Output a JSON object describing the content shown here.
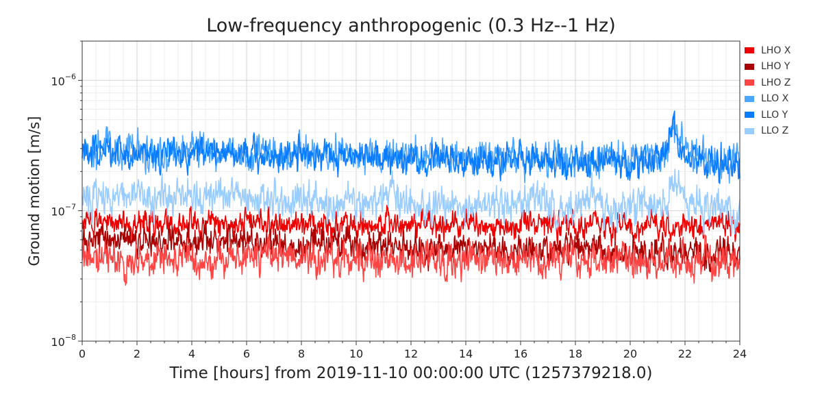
{
  "chart_data": {
    "type": "line",
    "title": "Low-frequency anthropogenic (0.3 Hz--1 Hz)",
    "xlabel": "Time [hours] from 2019-11-10 00:00:00 UTC (1257379218.0)",
    "ylabel": "Ground motion [m/s]",
    "xlim": [
      0,
      24
    ],
    "ylim": [
      1e-08,
      2e-06
    ],
    "yscale": "log",
    "grid": true,
    "legend_position": "outside-right-top",
    "xticks": [
      "0",
      "2",
      "4",
      "6",
      "8",
      "10",
      "12",
      "14",
      "16",
      "18",
      "20",
      "22",
      "24"
    ],
    "yticks": [
      {
        "value": 1e-08,
        "mantissa": "10",
        "exponent": "−8"
      },
      {
        "value": 1e-07,
        "mantissa": "10",
        "exponent": "−7"
      },
      {
        "value": 1e-06,
        "mantissa": "10",
        "exponent": "−6"
      }
    ],
    "series": [
      {
        "name": "LHO X",
        "color": "#ee0000",
        "x": [
          0,
          1,
          2,
          3,
          4,
          5,
          6,
          7,
          8,
          9,
          10,
          11,
          12,
          13,
          14,
          15,
          16,
          17,
          18,
          19,
          20,
          21,
          22,
          23,
          24
        ],
        "y": [
          7.4e-08,
          8.2e-08,
          8e-08,
          7.8e-08,
          8e-08,
          8.2e-08,
          8e-08,
          7.9e-08,
          7.8e-08,
          8e-08,
          7.6e-08,
          7.8e-08,
          7.8e-08,
          7.8e-08,
          7.8e-08,
          7.6e-08,
          7.8e-08,
          7.6e-08,
          7.8e-08,
          7.6e-08,
          7.6e-08,
          7.8e-08,
          7.8e-08,
          7.4e-08,
          7.6e-08
        ]
      },
      {
        "name": "LHO Y",
        "color": "#aa0000",
        "x": [
          0,
          1,
          2,
          3,
          4,
          5,
          6,
          7,
          8,
          9,
          10,
          11,
          12,
          13,
          14,
          15,
          16,
          17,
          18,
          19,
          20,
          21,
          22,
          23,
          24
        ],
        "y": [
          5.8e-08,
          6e-08,
          6e-08,
          5.8e-08,
          6e-08,
          6e-08,
          5.8e-08,
          5.7e-08,
          5.7e-08,
          5.6e-08,
          5.5e-08,
          5.4e-08,
          5.3e-08,
          5.2e-08,
          5.2e-08,
          5.1e-08,
          5.1e-08,
          5e-08,
          5e-08,
          4.9e-08,
          4.8e-08,
          4.8e-08,
          4.8e-08,
          4.7e-08,
          4.7e-08
        ]
      },
      {
        "name": "LHO Z",
        "color": "#ff4444",
        "x": [
          0,
          1,
          2,
          3,
          4,
          5,
          6,
          7,
          8,
          9,
          10,
          11,
          12,
          13,
          14,
          15,
          16,
          17,
          18,
          19,
          20,
          21,
          22,
          23,
          24
        ],
        "y": [
          4.3e-08,
          4.2e-08,
          4.1e-08,
          4.2e-08,
          4.2e-08,
          4.3e-08,
          4.3e-08,
          4.4e-08,
          4.3e-08,
          4.3e-08,
          4.4e-08,
          4.2e-08,
          4.3e-08,
          4.2e-08,
          4.3e-08,
          4.2e-08,
          4.1e-08,
          4.2e-08,
          4.1e-08,
          4.2e-08,
          4.1e-08,
          4e-08,
          4.1e-08,
          4e-08,
          4e-08
        ]
      },
      {
        "name": "LLO X",
        "color": "#4ba6ff",
        "x": [
          0,
          1,
          2,
          3,
          4,
          5,
          6,
          7,
          8,
          9,
          10,
          11,
          12,
          13,
          14,
          15,
          16,
          17,
          18,
          19,
          20,
          21,
          21.3,
          21.6,
          22,
          23,
          24
        ],
        "y": [
          2.8e-07,
          2.9e-07,
          2.9e-07,
          2.8e-07,
          2.9e-07,
          2.8e-07,
          2.8e-07,
          2.7e-07,
          2.8e-07,
          2.7e-07,
          2.7e-07,
          2.7e-07,
          2.6e-07,
          2.6e-07,
          2.6e-07,
          2.6e-07,
          2.6e-07,
          2.5e-07,
          2.5e-07,
          2.5e-07,
          2.4e-07,
          2.5e-07,
          2.9e-07,
          4.2e-07,
          2.8e-07,
          2.4e-07,
          2.4e-07
        ]
      },
      {
        "name": "LLO Y",
        "color": "#0a7cff",
        "x": [
          0,
          1,
          2,
          3,
          4,
          5,
          6,
          7,
          8,
          9,
          10,
          11,
          12,
          13,
          14,
          15,
          16,
          17,
          18,
          19,
          20,
          21,
          21.3,
          21.6,
          22,
          23,
          24
        ],
        "y": [
          2.7e-07,
          2.8e-07,
          2.8e-07,
          2.7e-07,
          2.8e-07,
          2.7e-07,
          2.7e-07,
          2.6e-07,
          2.7e-07,
          2.6e-07,
          2.6e-07,
          2.6e-07,
          2.5e-07,
          2.5e-07,
          2.5e-07,
          2.5e-07,
          2.5e-07,
          2.4e-07,
          2.4e-07,
          2.4e-07,
          2.3e-07,
          2.4e-07,
          2.9e-07,
          4.5e-07,
          2.7e-07,
          2.3e-07,
          2.3e-07
        ]
      },
      {
        "name": "LLO Z",
        "color": "#99ccff",
        "x": [
          0,
          1,
          2,
          3,
          4,
          5,
          6,
          7,
          8,
          9,
          10,
          11,
          11.3,
          11.8,
          12,
          13,
          14,
          15,
          16,
          17,
          18,
          18.7,
          19,
          20,
          21,
          21.6,
          22,
          23,
          24
        ],
        "y": [
          1.25e-07,
          1.3e-07,
          1.3e-07,
          1.25e-07,
          1.3e-07,
          1.3e-07,
          1.3e-07,
          1.2e-07,
          1.2e-07,
          1.15e-07,
          1.1e-07,
          1.2e-07,
          1.4e-07,
          1.2e-07,
          1.05e-07,
          1.05e-07,
          1.05e-07,
          1.1e-07,
          1.1e-07,
          1.1e-07,
          1.05e-07,
          1.3e-07,
          1.1e-07,
          1.05e-07,
          1.1e-07,
          1.7e-07,
          1.1e-07,
          1e-07,
          1e-07
        ]
      }
    ]
  }
}
